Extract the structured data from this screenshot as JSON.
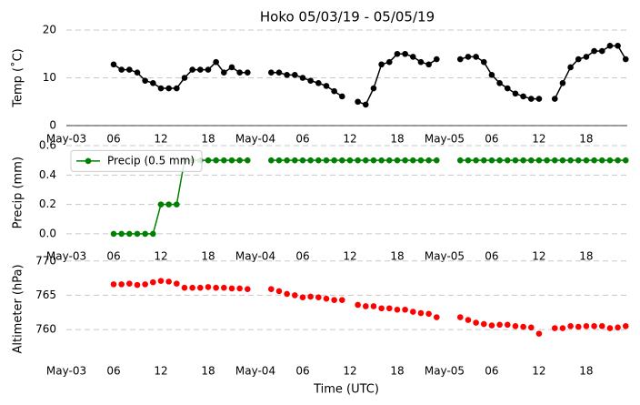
{
  "chart_data": [
    {
      "type": "line",
      "title": "Hoko 05/03/19 - 05/05/19",
      "ylabel": "Temp (˚C)",
      "color": "#000000",
      "grid": true,
      "xlim": [
        0,
        71.2
      ],
      "xticks": [
        {
          "value": 0,
          "label": "May-03"
        },
        {
          "value": 6,
          "label": "06"
        },
        {
          "value": 12,
          "label": "12"
        },
        {
          "value": 18,
          "label": "18"
        },
        {
          "value": 24,
          "label": "May-04"
        },
        {
          "value": 30,
          "label": "06"
        },
        {
          "value": 36,
          "label": "12"
        },
        {
          "value": 42,
          "label": "18"
        },
        {
          "value": 48,
          "label": "May-05"
        },
        {
          "value": 54,
          "label": "06"
        },
        {
          "value": 60,
          "label": "12"
        },
        {
          "value": 66,
          "label": "18"
        }
      ],
      "ylim": [
        0,
        20
      ],
      "yticks": [
        0,
        10,
        20
      ],
      "x": [
        6,
        7,
        8,
        9,
        10,
        11,
        12,
        13,
        14,
        15,
        16,
        17,
        18,
        19,
        20,
        21,
        22,
        23,
        24,
        25,
        26,
        27,
        28,
        29,
        30,
        31,
        32,
        33,
        34,
        35,
        36,
        37,
        38,
        39,
        40,
        41,
        42,
        43,
        44,
        45,
        46,
        47,
        48,
        49,
        50,
        51,
        52,
        53,
        54,
        55,
        56,
        57,
        58,
        59,
        60,
        61,
        62,
        63,
        64,
        65,
        66,
        67,
        68,
        69,
        70,
        71
      ],
      "values": [
        12.8,
        11.7,
        11.7,
        11.1,
        9.4,
        8.9,
        7.8,
        7.8,
        7.8,
        10.0,
        11.7,
        11.7,
        11.7,
        13.3,
        11.1,
        12.2,
        11.1,
        11.1,
        null,
        null,
        11.1,
        11.1,
        10.6,
        10.6,
        10.0,
        9.4,
        8.9,
        8.3,
        7.2,
        6.1,
        null,
        5.0,
        4.4,
        7.8,
        12.8,
        13.3,
        15.0,
        15.0,
        14.4,
        13.3,
        12.8,
        13.9,
        null,
        null,
        13.9,
        14.4,
        14.4,
        13.3,
        10.6,
        8.9,
        7.8,
        6.7,
        6.1,
        5.6,
        5.6,
        null,
        5.6,
        8.9,
        12.2,
        13.9,
        14.4,
        15.6,
        15.6,
        16.7,
        16.7,
        13.9
      ]
    },
    {
      "type": "line",
      "ylabel": "Precip (mm)",
      "grid": true,
      "legend": "upper left",
      "xlim": [
        0,
        71.2
      ],
      "xticks": [
        {
          "value": 0,
          "label": "May-03"
        },
        {
          "value": 6,
          "label": "06"
        },
        {
          "value": 12,
          "label": "12"
        },
        {
          "value": 18,
          "label": "18"
        },
        {
          "value": 24,
          "label": "May-04"
        },
        {
          "value": 30,
          "label": "06"
        },
        {
          "value": 36,
          "label": "12"
        },
        {
          "value": 42,
          "label": "18"
        },
        {
          "value": 48,
          "label": "May-05"
        },
        {
          "value": 54,
          "label": "06"
        },
        {
          "value": 60,
          "label": "12"
        },
        {
          "value": 66,
          "label": "18"
        }
      ],
      "ylim": [
        -0.05,
        0.61
      ],
      "yticks": [
        {
          "value": 0,
          "label": "0.0"
        },
        0.2,
        0.4,
        0.6
      ],
      "x": [
        6,
        7,
        8,
        9,
        10,
        11,
        12,
        13,
        14,
        15,
        16,
        17,
        18,
        19,
        20,
        21,
        22,
        23,
        24,
        25,
        26,
        27,
        28,
        29,
        30,
        31,
        32,
        33,
        34,
        35,
        36,
        37,
        38,
        39,
        40,
        41,
        42,
        43,
        44,
        45,
        46,
        47,
        48,
        49,
        50,
        51,
        52,
        53,
        54,
        55,
        56,
        57,
        58,
        59,
        60,
        61,
        62,
        63,
        64,
        65,
        66,
        67,
        68,
        69,
        70,
        71
      ],
      "series": [
        {
          "name": "Precip (0.5 mm)",
          "color": "#008000",
          "values": [
            0,
            0,
            0,
            0,
            0,
            0,
            0.2,
            0.2,
            0.2,
            0.5,
            0.5,
            0.5,
            0.5,
            0.5,
            0.5,
            0.5,
            0.5,
            0.5,
            null,
            null,
            0.5,
            0.5,
            0.5,
            0.5,
            0.5,
            0.5,
            0.5,
            0.5,
            0.5,
            0.5,
            0.5,
            0.5,
            0.5,
            0.5,
            0.5,
            0.5,
            0.5,
            0.5,
            0.5,
            0.5,
            0.5,
            0.5,
            null,
            null,
            0.5,
            0.5,
            0.5,
            0.5,
            0.5,
            0.5,
            0.5,
            0.5,
            0.5,
            0.5,
            0.5,
            0.5,
            0.5,
            0.5,
            0.5,
            0.5,
            0.5,
            0.5,
            0.5,
            0.5,
            0.5,
            0.5
          ]
        }
      ]
    },
    {
      "type": "scatter",
      "ylabel": "Altimeter (hPa)",
      "xlabel": "Time (UTC)",
      "color": "#ff0000",
      "grid": true,
      "xlim": [
        0,
        71.2
      ],
      "xticks": [
        {
          "value": 0,
          "label": "May-03"
        },
        {
          "value": 6,
          "label": "06"
        },
        {
          "value": 12,
          "label": "12"
        },
        {
          "value": 18,
          "label": "18"
        },
        {
          "value": 24,
          "label": "May-04"
        },
        {
          "value": 30,
          "label": "06"
        },
        {
          "value": 36,
          "label": "12"
        },
        {
          "value": 42,
          "label": "18"
        },
        {
          "value": 48,
          "label": "May-05"
        },
        {
          "value": 54,
          "label": "06"
        },
        {
          "value": 60,
          "label": "12"
        },
        {
          "value": 66,
          "label": "18"
        }
      ],
      "ylim": [
        755.5,
        770.5
      ],
      "yticks": [
        760,
        765,
        770
      ],
      "x": [
        6,
        7,
        8,
        9,
        10,
        11,
        12,
        13,
        14,
        15,
        16,
        17,
        18,
        19,
        20,
        21,
        22,
        23,
        24,
        25,
        26,
        27,
        28,
        29,
        30,
        31,
        32,
        33,
        34,
        35,
        36,
        37,
        38,
        39,
        40,
        41,
        42,
        43,
        44,
        45,
        46,
        47,
        48,
        49,
        50,
        51,
        52,
        53,
        54,
        55,
        56,
        57,
        58,
        59,
        60,
        61,
        62,
        63,
        64,
        65,
        66,
        67,
        68,
        69,
        70,
        71
      ],
      "values": [
        766.6,
        766.6,
        766.7,
        766.5,
        766.6,
        766.9,
        767.1,
        767.0,
        766.7,
        766.1,
        766.1,
        766.1,
        766.2,
        766.1,
        766.1,
        766.0,
        766.0,
        765.9,
        null,
        null,
        765.9,
        765.6,
        765.2,
        765.0,
        764.7,
        764.8,
        764.7,
        764.5,
        764.3,
        764.3,
        null,
        763.6,
        763.4,
        763.4,
        763.1,
        763.1,
        762.9,
        762.9,
        762.6,
        762.4,
        762.3,
        761.8,
        null,
        null,
        761.8,
        761.4,
        761.0,
        760.8,
        760.6,
        760.7,
        760.7,
        760.5,
        760.4,
        760.3,
        759.4,
        null,
        760.2,
        760.2,
        760.5,
        760.4,
        760.5,
        760.5,
        760.5,
        760.2,
        760.3,
        760.5
      ]
    }
  ]
}
